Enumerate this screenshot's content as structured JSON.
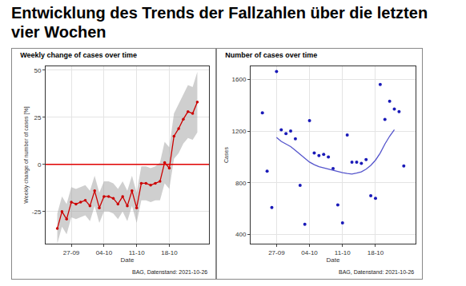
{
  "heading": "Entwicklung des Trends der Fallzahlen über die letzten vier Wochen",
  "chart_data": [
    {
      "type": "line",
      "title": "Weekly change of cases over time",
      "x_label": "Date",
      "y_label": "Weekly change of number of cases [%]",
      "caption": "BAG, Datenstand: 2021-10-26",
      "categories": [
        null,
        null,
        null,
        null,
        null,
        "27-09",
        null,
        null,
        null,
        null,
        null,
        null,
        "04-10",
        null,
        null,
        null,
        null,
        null,
        null,
        "11-10",
        null,
        null,
        null,
        null,
        null,
        null,
        "18-10",
        null,
        null,
        null,
        null,
        null,
        null,
        null,
        null
      ],
      "series": [
        {
          "type": "line",
          "color": "#cc0000",
          "marker": "circle",
          "values": [
            null,
            null,
            -34,
            -25,
            -29,
            -20,
            -21,
            -20,
            -19,
            -22,
            -14,
            -23,
            -17,
            -17,
            -18,
            -21,
            -17,
            -22,
            -14,
            -23,
            -10,
            -10,
            -11,
            -10,
            -9,
            1,
            -2,
            15,
            19,
            24,
            28,
            27,
            33,
            null,
            null
          ],
          "ci_lower": [
            null,
            null,
            -42,
            -33,
            -37,
            -28,
            -29,
            -28,
            -27,
            -30,
            -22,
            -31,
            -25,
            -25,
            -26,
            -29,
            -25,
            -30,
            -22,
            -31,
            -19,
            -19,
            -20,
            -19,
            -19,
            -10,
            -13,
            3,
            6,
            11,
            14,
            13,
            17,
            null,
            null
          ],
          "ci_upper": [
            null,
            null,
            -26,
            -17,
            -21,
            -12,
            -13,
            -12,
            -11,
            -14,
            -6,
            -15,
            -9,
            -9,
            -10,
            -13,
            -9,
            -14,
            -6,
            -15,
            -1,
            -1,
            -2,
            -1,
            1,
            12,
            9,
            27,
            32,
            37,
            42,
            41,
            49,
            null,
            null
          ]
        }
      ],
      "reference_line": {
        "value": 0,
        "color": "#e00000"
      },
      "ylim": [
        -42,
        52
      ],
      "yticks": [
        -25,
        0,
        25,
        50
      ],
      "grid": true
    },
    {
      "type": "scatter",
      "title": "Number of cases over time",
      "x_label": "Date",
      "y_label": "Cases",
      "caption": "BAG, Datenstand: 2021-10-26",
      "categories": [
        null,
        null,
        null,
        null,
        null,
        "27-09",
        null,
        null,
        null,
        null,
        null,
        null,
        "04-10",
        null,
        null,
        null,
        null,
        null,
        null,
        "11-10",
        null,
        null,
        null,
        null,
        null,
        null,
        "18-10",
        null,
        null,
        null,
        null,
        null,
        null,
        null,
        null
      ],
      "series": [
        {
          "type": "scatter",
          "color": "#1a1ab8",
          "marker": "circle",
          "values": [
            null,
            null,
            1340,
            890,
            610,
            1660,
            1210,
            1180,
            1200,
            1140,
            780,
            480,
            1280,
            1030,
            1010,
            1020,
            1000,
            910,
            630,
            490,
            1170,
            960,
            960,
            950,
            980,
            700,
            680,
            1560,
            1290,
            1430,
            1370,
            1350,
            930,
            null,
            null
          ]
        },
        {
          "type": "line",
          "color": "#5555cc",
          "values": [
            null,
            null,
            null,
            null,
            null,
            1150,
            1120,
            1100,
            1080,
            1050,
            1020,
            990,
            960,
            940,
            925,
            915,
            905,
            895,
            885,
            878,
            872,
            868,
            875,
            885,
            905,
            935,
            975,
            1030,
            1100,
            1160,
            1210,
            null,
            null,
            null,
            null
          ]
        }
      ],
      "ylim": [
        330,
        1700
      ],
      "yticks": [
        400,
        800,
        1200,
        1600
      ],
      "grid": true
    }
  ]
}
